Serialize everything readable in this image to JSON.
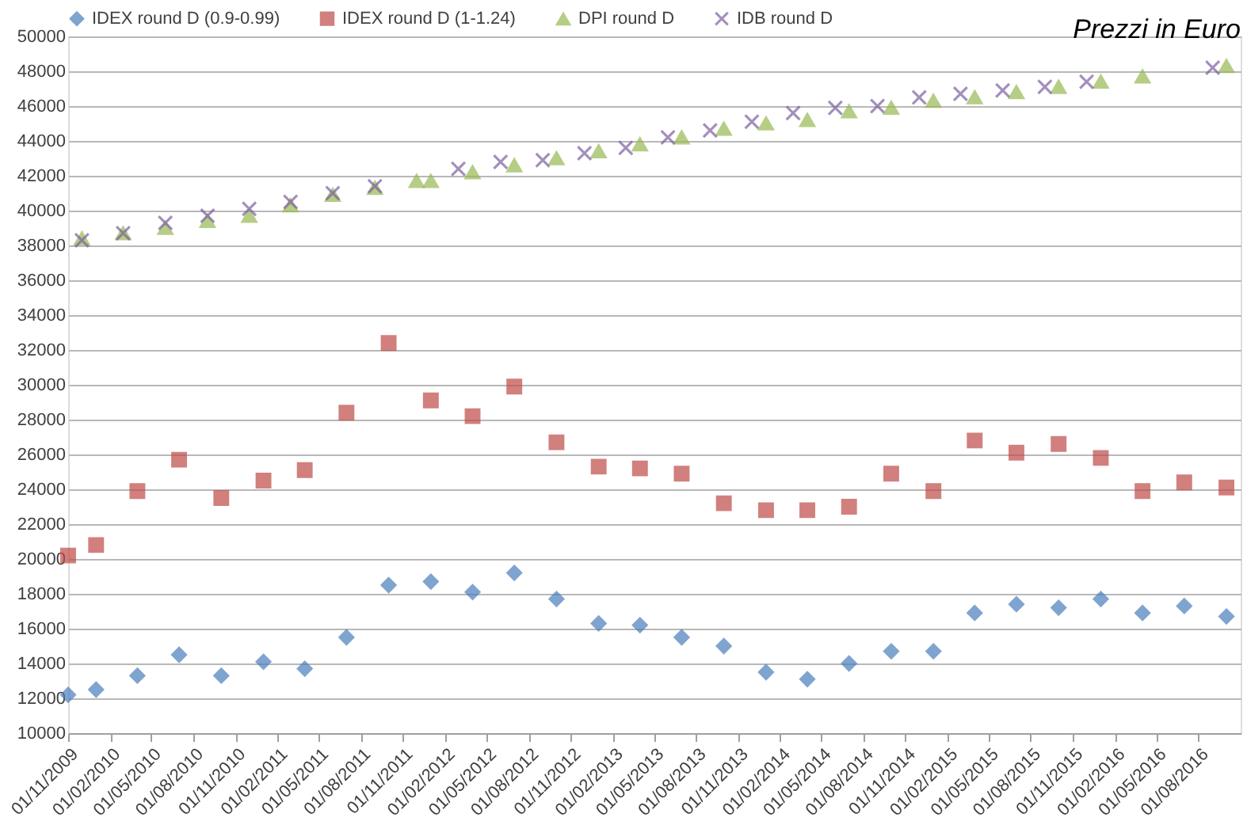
{
  "chart_data": {
    "type": "scatter",
    "title": "Prezzi in Euro",
    "legend": "top",
    "grid": "y",
    "ylim": [
      10000,
      50000
    ],
    "yticks": [
      10000,
      12000,
      14000,
      16000,
      18000,
      20000,
      22000,
      24000,
      26000,
      28000,
      30000,
      32000,
      34000,
      36000,
      38000,
      40000,
      42000,
      44000,
      46000,
      48000,
      50000
    ],
    "xlim": [
      "2009-11-01",
      "2016-11-01"
    ],
    "xticks": [
      {
        "value": "2009-11-01",
        "label": "01/11/2009"
      },
      {
        "value": "2010-02-01",
        "label": "01/02/2010"
      },
      {
        "value": "2010-05-01",
        "label": "01/05/2010"
      },
      {
        "value": "2010-08-01",
        "label": "01/08/2010"
      },
      {
        "value": "2010-11-01",
        "label": "01/11/2010"
      },
      {
        "value": "2011-02-01",
        "label": "01/02/2011"
      },
      {
        "value": "2011-05-01",
        "label": "01/05/2011"
      },
      {
        "value": "2011-08-01",
        "label": "01/08/2011"
      },
      {
        "value": "2011-11-01",
        "label": "01/11/2011"
      },
      {
        "value": "2012-02-01",
        "label": "01/02/2012"
      },
      {
        "value": "2012-05-01",
        "label": "01/05/2012"
      },
      {
        "value": "2012-08-01",
        "label": "01/08/2012"
      },
      {
        "value": "2012-11-01",
        "label": "01/11/2012"
      },
      {
        "value": "2013-02-01",
        "label": "01/02/2013"
      },
      {
        "value": "2013-05-01",
        "label": "01/05/2013"
      },
      {
        "value": "2013-08-01",
        "label": "01/08/2013"
      },
      {
        "value": "2013-11-01",
        "label": "01/11/2013"
      },
      {
        "value": "2014-02-01",
        "label": "01/02/2014"
      },
      {
        "value": "2014-05-01",
        "label": "01/05/2014"
      },
      {
        "value": "2014-08-01",
        "label": "01/08/2014"
      },
      {
        "value": "2014-11-01",
        "label": "01/11/2014"
      },
      {
        "value": "2015-02-01",
        "label": "01/02/2015"
      },
      {
        "value": "2015-05-01",
        "label": "01/05/2015"
      },
      {
        "value": "2015-08-01",
        "label": "01/08/2015"
      },
      {
        "value": "2015-11-01",
        "label": "01/11/2015"
      },
      {
        "value": "2016-02-01",
        "label": "01/02/2016"
      },
      {
        "value": "2016-05-01",
        "label": "01/05/2016"
      },
      {
        "value": "2016-08-01",
        "label": "01/08/2016"
      }
    ],
    "series": [
      {
        "name": "IDEX round D (0.9-0.99)",
        "color": "#4a7ebb",
        "marker": "diamond",
        "x": [
          "2009-11-01",
          "2010-01-01",
          "2010-04-01",
          "2010-07-01",
          "2010-10-01",
          "2011-01-01",
          "2011-04-01",
          "2011-07-01",
          "2011-10-01",
          "2012-01-01",
          "2012-04-01",
          "2012-07-01",
          "2012-10-01",
          "2013-01-01",
          "2013-04-01",
          "2013-07-01",
          "2013-10-01",
          "2014-01-01",
          "2014-04-01",
          "2014-07-01",
          "2014-10-01",
          "2015-01-01",
          "2015-04-01",
          "2015-07-01",
          "2015-10-01",
          "2016-01-01",
          "2016-04-01",
          "2016-07-01",
          "2016-10-01"
        ],
        "values": [
          12200,
          12500,
          13300,
          14500,
          13300,
          14100,
          13700,
          15500,
          18500,
          18700,
          18100,
          19200,
          17700,
          16300,
          16200,
          15500,
          15000,
          13500,
          13100,
          14000,
          14700,
          14700,
          16900,
          17400,
          17200,
          17700,
          16900,
          17300,
          16700
        ]
      },
      {
        "name": "IDEX round D (1-1.24)",
        "color": "#be4b48",
        "marker": "square",
        "x": [
          "2009-11-01",
          "2010-01-01",
          "2010-04-01",
          "2010-07-01",
          "2010-10-01",
          "2011-01-01",
          "2011-04-01",
          "2011-07-01",
          "2011-10-01",
          "2012-01-01",
          "2012-04-01",
          "2012-07-01",
          "2012-10-01",
          "2013-01-01",
          "2013-04-01",
          "2013-07-01",
          "2013-10-01",
          "2014-01-01",
          "2014-04-01",
          "2014-07-01",
          "2014-10-01",
          "2015-01-01",
          "2015-04-01",
          "2015-07-01",
          "2015-10-01",
          "2016-01-01",
          "2016-04-01",
          "2016-07-01",
          "2016-10-01"
        ],
        "values": [
          20200,
          20800,
          23900,
          25700,
          23500,
          24500,
          25100,
          28400,
          32400,
          29100,
          28200,
          29900,
          26700,
          25300,
          25200,
          24900,
          23200,
          22800,
          22800,
          23000,
          24900,
          23900,
          26800,
          26100,
          26600,
          25800,
          23900,
          24400,
          24100
        ]
      },
      {
        "name": "DPI round D",
        "color": "#98b954",
        "marker": "triangle",
        "x": [
          "2009-12-01",
          "2010-03-01",
          "2010-06-01",
          "2010-09-01",
          "2010-12-01",
          "2011-03-01",
          "2011-06-01",
          "2011-09-01",
          "2011-12-01",
          "2012-01-01",
          "2012-04-01",
          "2012-07-01",
          "2012-10-01",
          "2013-01-01",
          "2013-04-01",
          "2013-07-01",
          "2013-10-01",
          "2014-01-01",
          "2014-04-01",
          "2014-07-01",
          "2014-10-01",
          "2015-01-01",
          "2015-04-01",
          "2015-07-01",
          "2015-10-01",
          "2016-01-01",
          "2016-04-01",
          "2016-10-01"
        ],
        "values": [
          38400,
          38700,
          39000,
          39400,
          39700,
          40300,
          40900,
          41300,
          41700,
          41700,
          42200,
          42600,
          43000,
          43400,
          43800,
          44200,
          44700,
          45000,
          45200,
          45700,
          45900,
          46300,
          46500,
          46800,
          47100,
          47400,
          47700,
          48300
        ]
      },
      {
        "name": "IDB round D",
        "color": "#7d60a0",
        "marker": "cross",
        "x": [
          "2009-12-01",
          "2010-03-01",
          "2010-06-01",
          "2010-09-01",
          "2010-12-01",
          "2011-03-01",
          "2011-06-01",
          "2011-09-01",
          "2012-03-01",
          "2012-06-01",
          "2012-09-01",
          "2012-12-01",
          "2013-03-01",
          "2013-06-01",
          "2013-09-01",
          "2013-12-01",
          "2014-03-01",
          "2014-06-01",
          "2014-09-01",
          "2014-12-01",
          "2015-03-01",
          "2015-06-01",
          "2015-09-01",
          "2015-12-01",
          "2016-09-01"
        ],
        "values": [
          38300,
          38700,
          39300,
          39700,
          40100,
          40500,
          41000,
          41400,
          42400,
          42800,
          42900,
          43300,
          43600,
          44200,
          44600,
          45100,
          45600,
          45900,
          46000,
          46500,
          46700,
          46900,
          47100,
          47400,
          48200
        ]
      }
    ]
  }
}
